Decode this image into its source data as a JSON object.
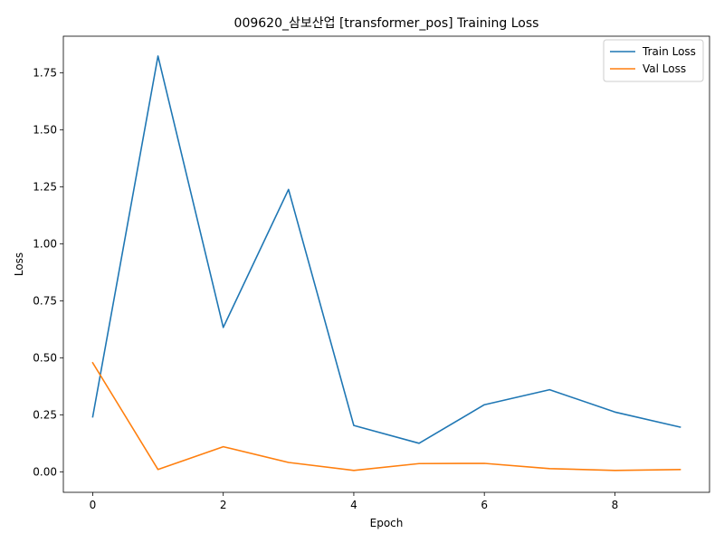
{
  "chart_data": {
    "type": "line",
    "title": "009620_삼보산업 [transformer_pos] Training Loss",
    "xlabel": "Epoch",
    "ylabel": "Loss",
    "x": [
      0,
      1,
      2,
      3,
      4,
      5,
      6,
      7,
      8,
      9
    ],
    "xlim": [
      -0.45,
      9.45
    ],
    "ylim": [
      -0.09,
      1.91
    ],
    "xticks": [
      0,
      2,
      4,
      6,
      8
    ],
    "yticks": [
      0.0,
      0.25,
      0.5,
      0.75,
      1.0,
      1.25,
      1.5,
      1.75
    ],
    "ytick_labels": [
      "0.00",
      "0.25",
      "0.50",
      "0.75",
      "1.00",
      "1.25",
      "1.50",
      "1.75"
    ],
    "grid": false,
    "legend_position": "top-right",
    "series": [
      {
        "name": "Train Loss",
        "color": "#1f77b4",
        "values": [
          0.241,
          1.823,
          0.633,
          1.238,
          0.203,
          0.125,
          0.294,
          0.36,
          0.262,
          0.196
        ]
      },
      {
        "name": "Val Loss",
        "color": "#ff7f0e",
        "values": [
          0.478,
          0.01,
          0.11,
          0.041,
          0.006,
          0.036,
          0.037,
          0.014,
          0.006,
          0.01
        ]
      }
    ]
  }
}
